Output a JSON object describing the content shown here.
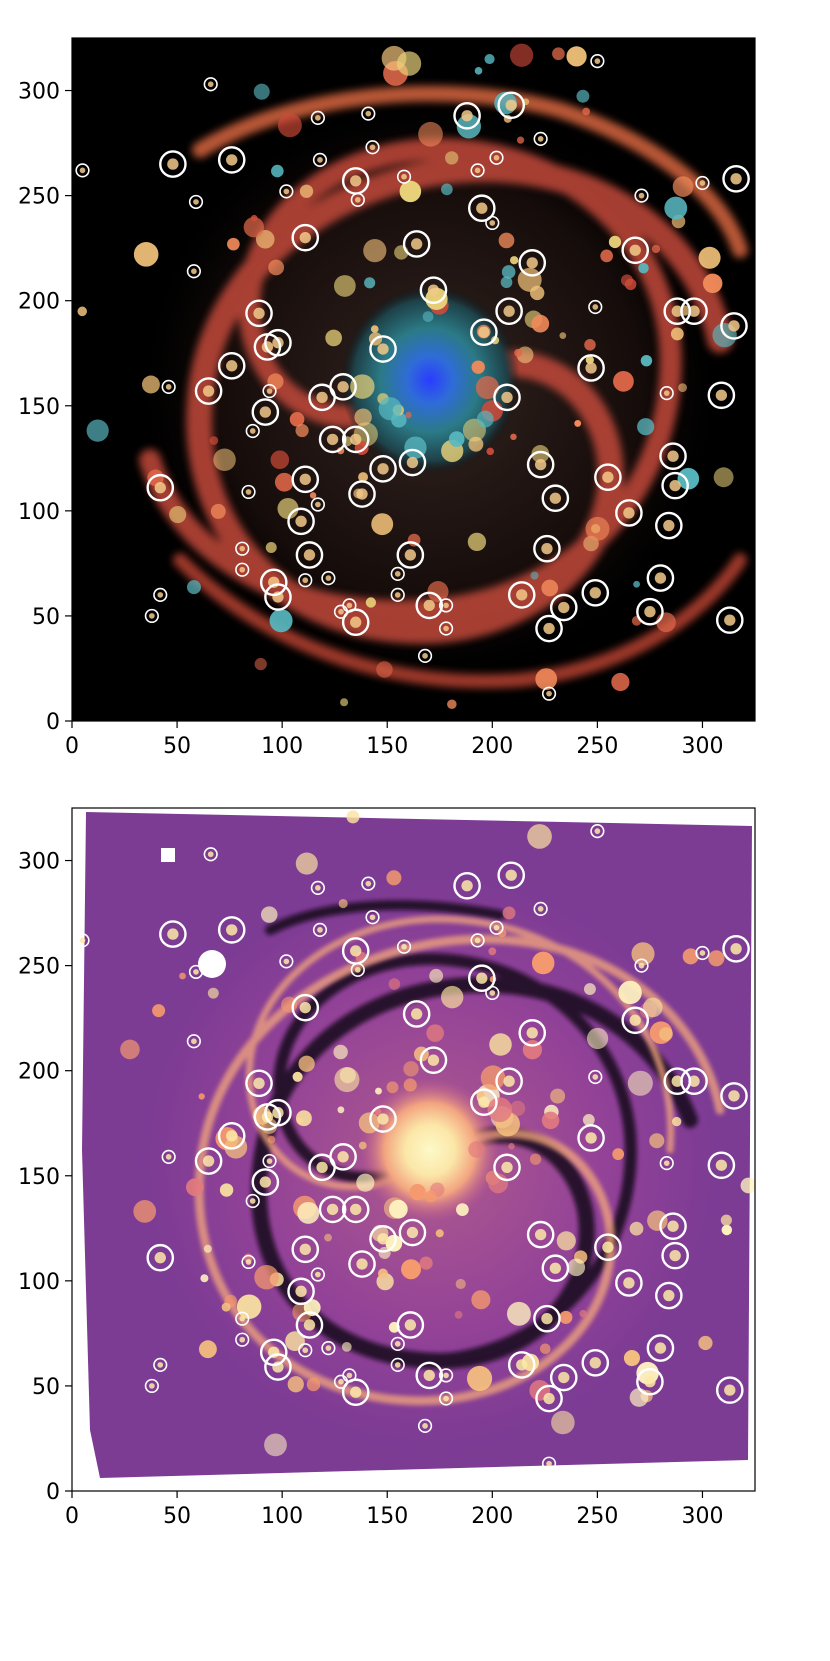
{
  "panels": [
    {
      "name": "top",
      "style": "rgb-galaxy",
      "xticks": [
        0,
        50,
        100,
        150,
        200,
        250,
        300
      ],
      "yticks": [
        0,
        50,
        100,
        150,
        200,
        250,
        300
      ],
      "xlim": [
        0,
        325
      ],
      "ylim": [
        0,
        325
      ]
    },
    {
      "name": "bottom",
      "style": "magma-map",
      "xticks": [
        0,
        50,
        100,
        150,
        200,
        250,
        300
      ],
      "yticks": [
        0,
        50,
        100,
        150,
        200,
        250,
        300
      ],
      "xlim": [
        0,
        325
      ],
      "ylim": [
        0,
        325
      ]
    }
  ],
  "circles": [
    [
      48,
      265,
      6
    ],
    [
      76,
      267,
      6
    ],
    [
      111,
      230,
      6
    ],
    [
      172,
      205,
      6
    ],
    [
      208,
      195,
      6
    ],
    [
      196,
      185,
      6
    ],
    [
      219,
      218,
      6
    ],
    [
      164,
      227,
      6
    ],
    [
      135,
      257,
      6
    ],
    [
      188,
      288,
      6
    ],
    [
      209,
      293,
      6
    ],
    [
      195,
      244,
      6
    ],
    [
      268,
      224,
      6
    ],
    [
      288,
      195,
      6
    ],
    [
      296,
      195,
      6
    ],
    [
      316,
      258,
      6
    ],
    [
      315,
      188,
      6
    ],
    [
      309,
      155,
      6
    ],
    [
      247,
      168,
      6
    ],
    [
      207,
      154,
      6
    ],
    [
      148,
      177,
      6
    ],
    [
      89,
      194,
      6
    ],
    [
      98,
      180,
      6
    ],
    [
      93,
      178,
      6
    ],
    [
      76,
      169,
      6
    ],
    [
      65,
      157,
      6
    ],
    [
      92,
      147,
      6
    ],
    [
      119,
      154,
      6
    ],
    [
      129,
      159,
      6
    ],
    [
      124,
      134,
      6
    ],
    [
      135,
      134,
      6
    ],
    [
      148,
      120,
      6
    ],
    [
      162,
      123,
      6
    ],
    [
      138,
      108,
      6
    ],
    [
      111,
      115,
      6
    ],
    [
      109,
      95,
      6
    ],
    [
      113,
      79,
      6
    ],
    [
      96,
      66,
      6
    ],
    [
      98,
      59,
      6
    ],
    [
      135,
      47,
      6
    ],
    [
      161,
      79,
      6
    ],
    [
      170,
      55,
      6
    ],
    [
      214,
      60,
      6
    ],
    [
      227,
      44,
      6
    ],
    [
      234,
      54,
      6
    ],
    [
      249,
      61,
      6
    ],
    [
      226,
      82,
      6
    ],
    [
      230,
      106,
      6
    ],
    [
      223,
      122,
      6
    ],
    [
      255,
      116,
      6
    ],
    [
      265,
      99,
      6
    ],
    [
      284,
      93,
      6
    ],
    [
      287,
      112,
      6
    ],
    [
      286,
      126,
      6
    ],
    [
      280,
      68,
      6
    ],
    [
      275,
      52,
      6
    ],
    [
      313,
      48,
      6
    ],
    [
      42,
      111,
      6
    ],
    [
      5,
      262,
      3
    ],
    [
      66,
      303,
      3
    ],
    [
      59,
      247,
      3
    ],
    [
      58,
      214,
      3
    ],
    [
      46,
      159,
      3
    ],
    [
      42,
      60,
      3
    ],
    [
      38,
      50,
      3
    ],
    [
      84,
      109,
      3
    ],
    [
      81,
      82,
      3
    ],
    [
      81,
      72,
      3
    ],
    [
      86,
      138,
      3
    ],
    [
      94,
      157,
      3
    ],
    [
      102,
      252,
      3
    ],
    [
      117,
      287,
      3
    ],
    [
      118,
      267,
      3
    ],
    [
      141,
      289,
      3
    ],
    [
      143,
      273,
      3
    ],
    [
      136,
      248,
      3
    ],
    [
      158,
      259,
      3
    ],
    [
      117,
      103,
      3
    ],
    [
      111,
      67,
      3
    ],
    [
      122,
      68,
      3
    ],
    [
      128,
      52,
      3
    ],
    [
      132,
      55,
      3
    ],
    [
      155,
      60,
      3
    ],
    [
      155,
      70,
      3
    ],
    [
      168,
      31,
      3
    ],
    [
      178,
      55,
      3
    ],
    [
      178,
      44,
      3
    ],
    [
      193,
      262,
      3
    ],
    [
      200,
      237,
      3
    ],
    [
      202,
      268,
      3
    ],
    [
      223,
      277,
      3
    ],
    [
      250,
      314,
      3
    ],
    [
      249,
      197,
      3
    ],
    [
      271,
      250,
      3
    ],
    [
      283,
      156,
      3
    ],
    [
      300,
      256,
      3
    ],
    [
      227,
      13,
      3
    ]
  ]
}
